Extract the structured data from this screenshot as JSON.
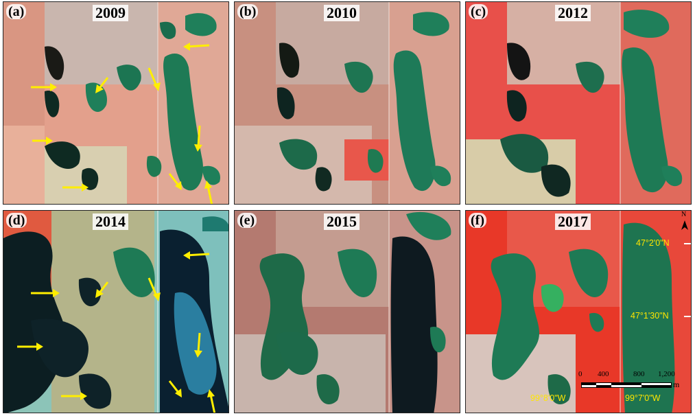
{
  "panels": [
    {
      "label": "(a)",
      "year": "2009"
    },
    {
      "label": "(b)",
      "year": "2010"
    },
    {
      "label": "(c)",
      "year": "2012"
    },
    {
      "label": "(d)",
      "year": "2014"
    },
    {
      "label": "(e)",
      "year": "2015"
    },
    {
      "label": "(f)",
      "year": "2017"
    }
  ],
  "north_arrow": "N",
  "coordinates": {
    "lat_top": "47°2'0\"N",
    "lat_bottom": "47°1'30\"N",
    "lon_left": "99°8'0\"W",
    "lon_right": "99°7'0\"W"
  },
  "scale_bar": {
    "ticks": [
      "0",
      "400",
      "800",
      "1,200"
    ],
    "unit": "m"
  },
  "colors": {
    "arrow": "#ffee00",
    "coordinate_text": "#ffe600",
    "water_green": "#1f7a52",
    "water_dark": "#0e2a22",
    "land_pink": "#e89880",
    "land_red": "#e8453a",
    "land_cyan": "#7fbfb5"
  }
}
